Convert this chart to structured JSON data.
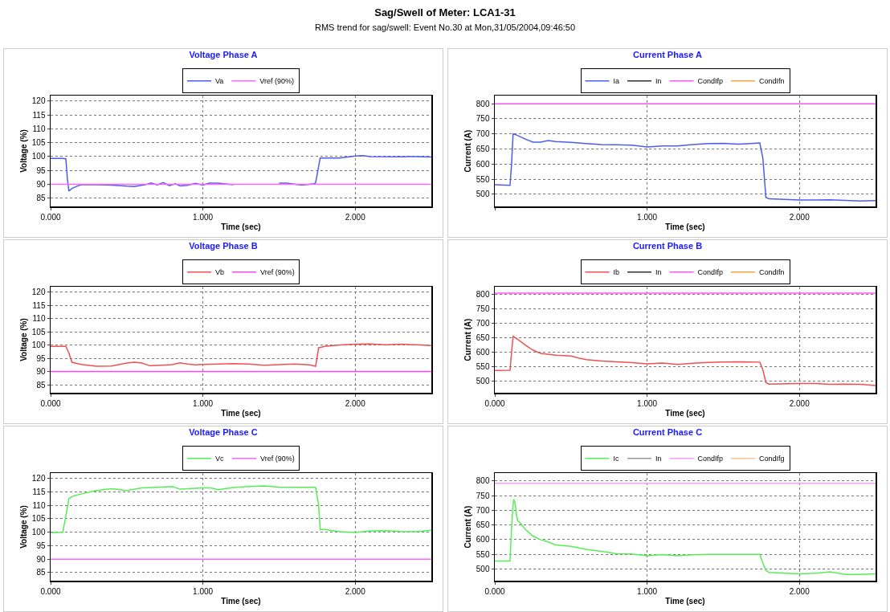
{
  "chart_data": [
    {
      "type": "other",
      "title": "Sag/Swell of Meter: LCA1-31",
      "subtitle": "RMS trend for sag/swell: Event No.30 at Mon,31/05/2004,09:46:50"
    },
    {
      "type": "line",
      "title": "Voltage Phase A",
      "xlabel": "Time (sec)",
      "ylabel": "Voltage (%)",
      "xlim": [
        0,
        2.5
      ],
      "xticks": [
        {
          "value": 0,
          "label": "0.000"
        },
        {
          "value": 1,
          "label": "1.000"
        },
        {
          "value": 2,
          "label": "2.000"
        }
      ],
      "ylim": [
        82,
        122
      ],
      "yticks": [
        85,
        90,
        95,
        100,
        105,
        110,
        115,
        120
      ],
      "grid": true,
      "legend": "top",
      "marker": "none",
      "line_style": "solid",
      "series": [
        {
          "name": "Va",
          "color": "#4b5cf0",
          "x": [
            0,
            0.08,
            0.1,
            0.11,
            0.12,
            0.14,
            0.17,
            0.2,
            0.25,
            0.3,
            0.4,
            0.5,
            0.55,
            0.62,
            0.66,
            0.7,
            0.74,
            0.78,
            0.82,
            0.85,
            0.9,
            0.95,
            1.0,
            1.04,
            1.1,
            1.2,
            1.3,
            1.5,
            1.55,
            1.65,
            1.73,
            1.74,
            1.77,
            1.8,
            1.9,
            2.0,
            2.05,
            2.1,
            2.3,
            2.4,
            2.5
          ],
          "values": [
            99.3,
            99.3,
            99.2,
            92,
            87.5,
            88.5,
            89.2,
            89.8,
            89.9,
            89.8,
            89.7,
            89.3,
            89.2,
            89.8,
            90.5,
            89.8,
            90.6,
            89.5,
            90.2,
            89.4,
            89.6,
            90.3,
            89.7,
            90.4,
            90.4,
            89.8,
            null,
            90.4,
            90.4,
            89.7,
            90.2,
            90.5,
            99.5,
            99.5,
            99.5,
            100.2,
            100.3,
            100,
            99.9,
            100,
            99.8
          ]
        },
        {
          "name": "Vref (90%)",
          "color": "#ff66ff",
          "x": [
            0,
            2.5
          ],
          "values": [
            90,
            90
          ]
        }
      ]
    },
    {
      "type": "line",
      "title": "Current Phase A",
      "xlabel": "Time (sec)",
      "ylabel": "Current (A)",
      "xlim": [
        0,
        2.5
      ],
      "xticks": [
        {
          "value": 0,
          "label": null
        },
        {
          "value": 1,
          "label": "1.000"
        },
        {
          "value": 2,
          "label": "2.000"
        }
      ],
      "ylim": [
        460,
        827
      ],
      "yticks": [
        500,
        550,
        600,
        650,
        700,
        750,
        800
      ],
      "grid": true,
      "legend": "top",
      "marker": "none",
      "line_style": "solid",
      "series": [
        {
          "name": "Ia",
          "color": "#4b5cf0",
          "x": [
            0,
            0.1,
            0.11,
            0.12,
            0.14,
            0.2,
            0.25,
            0.3,
            0.35,
            0.4,
            0.5,
            0.6,
            0.7,
            0.8,
            0.9,
            1.0,
            1.1,
            1.2,
            1.3,
            1.4,
            1.5,
            1.6,
            1.7,
            1.74,
            1.76,
            1.78,
            1.8,
            2.0,
            2.1,
            2.2,
            2.3,
            2.4,
            2.5
          ],
          "values": [
            532,
            530,
            600,
            700,
            697,
            683,
            673,
            673,
            678,
            675,
            672,
            668,
            665,
            664,
            663,
            657,
            660,
            660,
            665,
            668,
            669,
            666,
            669,
            670,
            620,
            490,
            485,
            481,
            481,
            482,
            480,
            478,
            479
          ]
        },
        {
          "name": "In",
          "color": "#333333"
        },
        {
          "name": "CondIfp",
          "color": "#ff55ff",
          "x": [
            0,
            2.5
          ],
          "values": [
            800,
            800
          ]
        },
        {
          "name": "CondIfn",
          "color": "#ffa040"
        }
      ]
    },
    {
      "type": "line",
      "title": "Voltage Phase B",
      "xlabel": "Time (sec)",
      "ylabel": "Voltage (%)",
      "xlim": [
        0,
        2.5
      ],
      "xticks": [
        {
          "value": 0,
          "label": "0.000"
        },
        {
          "value": 1,
          "label": "1.000"
        },
        {
          "value": 2,
          "label": "2.000"
        }
      ],
      "ylim": [
        82,
        122
      ],
      "yticks": [
        85,
        90,
        95,
        100,
        105,
        110,
        115,
        120
      ],
      "grid": true,
      "legend": "top",
      "marker": "none",
      "line_style": "solid",
      "series": [
        {
          "name": "Vb",
          "color": "#f05050",
          "x": [
            0,
            0.1,
            0.12,
            0.14,
            0.2,
            0.3,
            0.4,
            0.5,
            0.55,
            0.6,
            0.65,
            0.7,
            0.8,
            0.85,
            0.9,
            0.95,
            1.0,
            1.1,
            1.2,
            1.3,
            1.4,
            1.5,
            1.6,
            1.7,
            1.74,
            1.76,
            1.8,
            1.9,
            2.0,
            2.1,
            2.2,
            2.3,
            2.4,
            2.5
          ],
          "values": [
            99.5,
            99.5,
            97,
            93.5,
            92.7,
            92,
            92.1,
            93.2,
            93.5,
            93.2,
            92.2,
            92.3,
            92.6,
            93.3,
            92.8,
            92.5,
            92.7,
            92.8,
            93,
            92.8,
            92.4,
            92.6,
            92.8,
            92.5,
            92,
            99,
            99.5,
            100,
            100.3,
            100.4,
            100.1,
            100.3,
            100.1,
            99.8
          ]
        },
        {
          "name": "Vref (90%)",
          "color": "#ff44ff",
          "x": [
            0,
            2.5
          ],
          "values": [
            90,
            90
          ]
        }
      ]
    },
    {
      "type": "line",
      "title": "Current Phase B",
      "xlabel": "Time (sec)",
      "ylabel": "Current (A)",
      "xlim": [
        0,
        2.5
      ],
      "xticks": [
        {
          "value": 0,
          "label": "0.000"
        },
        {
          "value": 1,
          "label": "1.000"
        },
        {
          "value": 2,
          "label": "2.000"
        }
      ],
      "ylim": [
        460,
        827
      ],
      "yticks": [
        500,
        550,
        600,
        650,
        700,
        750,
        800
      ],
      "grid": true,
      "legend": "top",
      "marker": "none",
      "line_style": "solid",
      "series": [
        {
          "name": "Ib",
          "color": "#f05050",
          "x": [
            0,
            0.1,
            0.11,
            0.12,
            0.15,
            0.2,
            0.25,
            0.3,
            0.4,
            0.5,
            0.55,
            0.6,
            0.7,
            0.8,
            0.9,
            1.0,
            1.1,
            1.2,
            1.3,
            1.4,
            1.5,
            1.6,
            1.74,
            1.76,
            1.78,
            1.8,
            2.0,
            2.1,
            2.2,
            2.3,
            2.4,
            2.5
          ],
          "values": [
            537,
            538,
            600,
            655,
            645,
            625,
            608,
            596,
            590,
            587,
            580,
            575,
            570,
            567,
            564,
            560,
            563,
            558,
            562,
            565,
            566,
            567,
            566,
            540,
            495,
            490,
            492,
            492,
            489,
            490,
            489,
            485
          ]
        },
        {
          "name": "In",
          "color": "#333333"
        },
        {
          "name": "CondIfp",
          "color": "#ff55ff",
          "x": [
            0,
            2.5
          ],
          "values": [
            805,
            805
          ]
        },
        {
          "name": "CondIfn",
          "color": "#ffa040"
        }
      ]
    },
    {
      "type": "line",
      "title": "Voltage Phase C",
      "xlabel": "Time (sec)",
      "ylabel": "Voltage (%)",
      "xlim": [
        0,
        2.5
      ],
      "xticks": [
        {
          "value": 0,
          "label": "0.000"
        },
        {
          "value": 1,
          "label": "1.000"
        },
        {
          "value": 2,
          "label": "2.000"
        }
      ],
      "ylim": [
        82,
        122
      ],
      "yticks": [
        85,
        90,
        95,
        100,
        105,
        110,
        115,
        120
      ],
      "grid": true,
      "legend": "top",
      "marker": "none",
      "line_style": "solid",
      "series": [
        {
          "name": "Vc",
          "color": "#55ee55",
          "x": [
            0,
            0.08,
            0.1,
            0.12,
            0.15,
            0.2,
            0.3,
            0.4,
            0.5,
            0.6,
            0.7,
            0.8,
            0.85,
            0.9,
            1.0,
            1.05,
            1.1,
            1.2,
            1.3,
            1.4,
            1.5,
            1.6,
            1.74,
            1.76,
            1.77,
            1.8,
            1.9,
            2.0,
            2.1,
            2.2,
            2.3,
            2.4,
            2.5
          ],
          "values": [
            99.8,
            100,
            106,
            112.5,
            113.5,
            114.2,
            115.5,
            116.2,
            115.5,
            116.5,
            116.7,
            117,
            116,
            116.2,
            116.5,
            116.5,
            115.8,
            116.6,
            117,
            117.2,
            116.8,
            116.7,
            116.7,
            110,
            101,
            101,
            100.2,
            99.9,
            100.5,
            100.6,
            100.3,
            100.2,
            100.7
          ]
        },
        {
          "name": "Vref (90%)",
          "color": "#ff66ff",
          "x": [
            0,
            2.5
          ],
          "values": [
            90,
            90
          ]
        }
      ]
    },
    {
      "type": "line",
      "title": "Current Phase C",
      "xlabel": "Time (sec)",
      "ylabel": "Current (A)",
      "xlim": [
        0,
        2.5
      ],
      "xticks": [
        {
          "value": 0,
          "label": "0.000"
        },
        {
          "value": 1,
          "label": "1.000"
        },
        {
          "value": 2,
          "label": "2.000"
        }
      ],
      "ylim": [
        460,
        827
      ],
      "yticks": [
        500,
        550,
        600,
        650,
        700,
        750,
        800
      ],
      "grid": true,
      "legend": "top",
      "marker": "none",
      "line_style": "solid",
      "series": [
        {
          "name": "Ic",
          "color": "#55ee55",
          "x": [
            0,
            0.1,
            0.11,
            0.12,
            0.125,
            0.135,
            0.14,
            0.15,
            0.17,
            0.2,
            0.25,
            0.3,
            0.35,
            0.4,
            0.5,
            0.6,
            0.7,
            0.8,
            0.9,
            1.0,
            1.1,
            1.2,
            1.3,
            1.4,
            1.5,
            1.6,
            1.74,
            1.76,
            1.78,
            1.8,
            2.0,
            2.1,
            2.2,
            2.3,
            2.4,
            2.5
          ],
          "values": [
            527,
            527,
            640,
            720,
            738,
            720,
            690,
            665,
            655,
            635,
            612,
            600,
            592,
            582,
            577,
            567,
            560,
            552,
            551,
            545,
            549,
            545,
            548,
            550,
            550,
            550,
            550,
            520,
            495,
            488,
            483,
            485,
            490,
            481,
            481,
            483
          ]
        },
        {
          "name": "In",
          "color": "#999999"
        },
        {
          "name": "CondIfp",
          "color": "#ff99ff",
          "x": [
            0,
            2.5
          ],
          "values": [
            792,
            792
          ]
        },
        {
          "name": "CondIfg",
          "color": "#ffc090"
        }
      ]
    }
  ]
}
